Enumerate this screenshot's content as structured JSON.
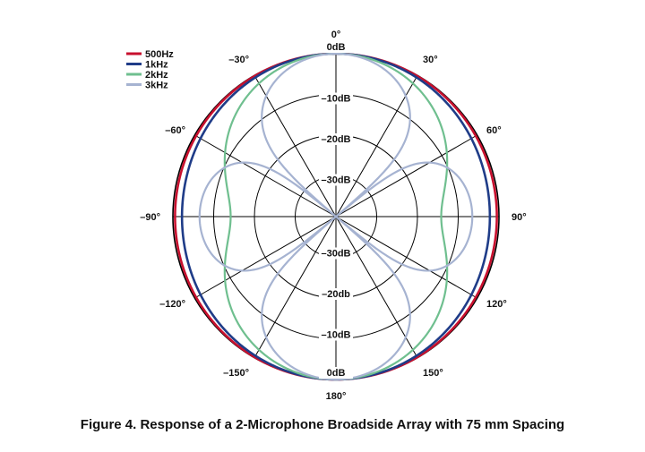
{
  "caption": "Figure 4. Response of a 2-Microphone Broadside Array with 75 mm Spacing",
  "chart_data": {
    "type": "polar",
    "title": "",
    "radial_unit": "dB",
    "radial_range": [
      -40,
      0
    ],
    "ring_values": [
      0,
      -10,
      -20,
      -30
    ],
    "ring_labels_top": [
      "0dB",
      "–10dB",
      "–20dB",
      "–30dB"
    ],
    "ring_labels_bottom": [
      "0dB",
      "–10dB",
      "–20db",
      "–30dB"
    ],
    "angle_ticks": [
      0,
      30,
      60,
      90,
      120,
      150,
      180,
      -150,
      -120,
      -90,
      -60,
      -30
    ],
    "angle_labels": [
      "0°",
      "30°",
      "60°",
      "90°",
      "120°",
      "150°",
      "180°",
      "–150°",
      "–120°",
      "–90°",
      "–60°",
      "–30°"
    ],
    "legend_position": "top-left",
    "series": [
      {
        "name": "500Hz",
        "color": "#c8102e",
        "spacing_mm": 75,
        "frequency_hz": 500
      },
      {
        "name": "1kHz",
        "color": "#1f3c88",
        "spacing_mm": 75,
        "frequency_hz": 1000
      },
      {
        "name": "2kHz",
        "color": "#6fbf8f",
        "spacing_mm": 75,
        "frequency_hz": 2000
      },
      {
        "name": "3kHz",
        "color": "#a6b3d1",
        "spacing_mm": 75,
        "frequency_hz": 3000
      }
    ]
  }
}
